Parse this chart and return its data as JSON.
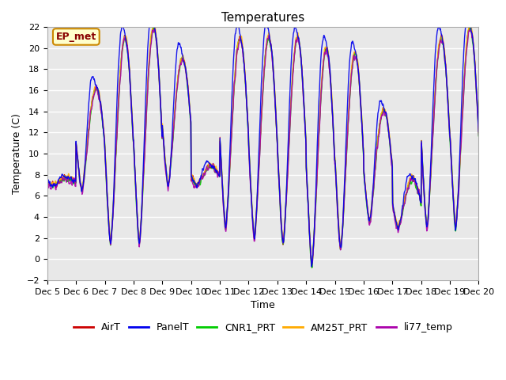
{
  "title": "Temperatures",
  "xlabel": "Time",
  "ylabel": "Temperature (C)",
  "ylim": [
    -2,
    22
  ],
  "yticks": [
    -2,
    0,
    2,
    4,
    6,
    8,
    10,
    12,
    14,
    16,
    18,
    20,
    22
  ],
  "xtick_labels": [
    "Dec 5",
    "Dec 6",
    "Dec 7",
    "Dec 8",
    "Dec 9",
    "Dec 10",
    "Dec 11",
    "Dec 12",
    "Dec 13",
    "Dec 14",
    "Dec 15",
    "Dec 16",
    "Dec 17",
    "Dec 18",
    "Dec 19",
    "Dec 20"
  ],
  "series_colors": {
    "AirT": "#cc0000",
    "PanelT": "#0000ee",
    "CNR1_PRT": "#00cc00",
    "AM25T_PRT": "#ffaa00",
    "li77_temp": "#aa00aa"
  },
  "series_names": [
    "AirT",
    "PanelT",
    "CNR1_PRT",
    "AM25T_PRT",
    "li77_temp"
  ],
  "background_color": "#e8e8e8",
  "annotation_text": "EP_met",
  "annotation_bg": "#ffffcc",
  "annotation_border": "#cc8800",
  "n_days": 15,
  "n_per_day": 96,
  "day_profiles": [
    {
      "tmin": 7.0,
      "tmax": 8.5,
      "cloud": 0.9
    },
    {
      "tmin": 6.5,
      "tmax": 17.5,
      "cloud": 0.2
    },
    {
      "tmin": 1.5,
      "tmax": 21.0,
      "cloud": 0.0
    },
    {
      "tmin": 1.5,
      "tmax": 22.0,
      "cloud": 0.0
    },
    {
      "tmin": 7.0,
      "tmax": 19.0,
      "cloud": 0.0
    },
    {
      "tmin": 7.0,
      "tmax": 10.5,
      "cloud": 0.8
    },
    {
      "tmin": 3.0,
      "tmax": 21.0,
      "cloud": 0.0
    },
    {
      "tmin": 2.0,
      "tmax": 21.0,
      "cloud": 0.0
    },
    {
      "tmin": 1.5,
      "tmax": 21.0,
      "cloud": 0.0
    },
    {
      "tmin": -0.5,
      "tmax": 20.0,
      "cloud": 0.0
    },
    {
      "tmin": 1.0,
      "tmax": 19.5,
      "cloud": 0.0
    },
    {
      "tmin": 3.5,
      "tmax": 16.5,
      "cloud": 0.3
    },
    {
      "tmin": 3.0,
      "tmax": 11.0,
      "cloud": 0.7
    },
    {
      "tmin": 3.0,
      "tmax": 21.0,
      "cloud": 0.0
    },
    {
      "tmin": 3.0,
      "tmax": 22.0,
      "cloud": 0.0
    }
  ]
}
